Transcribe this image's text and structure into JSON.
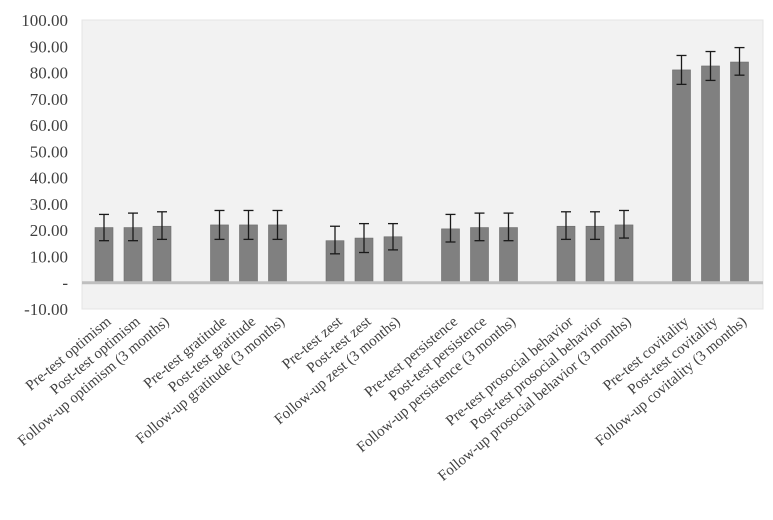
{
  "chart_data": {
    "type": "bar",
    "title": "",
    "xlabel": "",
    "ylabel": "",
    "ylim": [
      -10,
      100
    ],
    "yticks": [
      "-10.00",
      "-",
      "10.00",
      "20.00",
      "30.00",
      "40.00",
      "50.00",
      "60.00",
      "70.00",
      "80.00",
      "90.00",
      "100.00"
    ],
    "ytick_values": [
      -10,
      0,
      10,
      20,
      30,
      40,
      50,
      60,
      70,
      80,
      90,
      100
    ],
    "grid": false,
    "legend": "none",
    "groups": [
      [
        "Pre-test optimism",
        "Post-test optimism",
        "Follow-up optimism (3 months)"
      ],
      [
        "Pre-test gratitude",
        "Post-test gratitude",
        "Follow-up gratitude (3 months)"
      ],
      [
        "Pre-test zest",
        "Post-test zest",
        "Follow-up zest (3 months)"
      ],
      [
        "Pre-test persistence",
        "Post-test persistence",
        "Follow-up persistence (3 months)"
      ],
      [
        "Pre-test prosocial behavior",
        "Post-test prosocial behavior",
        "Follow-up prosocial behavior (3 months)"
      ],
      [
        "Pre-test covitality",
        "Post-test covitality",
        "Follow-up covitality (3 months)"
      ]
    ],
    "categories": [
      "Pre-test optimism",
      "Post-test optimism",
      "Follow-up optimism (3 months)",
      "Pre-test gratitude",
      "Post-test gratitude",
      "Follow-up gratitude (3 months)",
      "Pre-test zest",
      "Post-test zest",
      "Follow-up zest (3 months)",
      "Pre-test persistence",
      "Post-test persistence",
      "Follow-up persistence (3 months)",
      "Pre-test prosocial behavior",
      "Post-test prosocial behavior",
      "Follow-up prosocial behavior (3 months)",
      "Pre-test covitality",
      "Post-test covitality",
      "Follow-up covitality (3 months)"
    ],
    "values": [
      21.0,
      21.0,
      21.5,
      22.0,
      22.0,
      22.0,
      16.0,
      17.0,
      17.5,
      20.5,
      21.0,
      21.0,
      21.5,
      21.5,
      22.0,
      81.0,
      82.5,
      84.0
    ],
    "error_low": [
      16.0,
      16.0,
      16.5,
      16.5,
      16.5,
      16.5,
      11.0,
      11.5,
      12.5,
      15.5,
      16.0,
      16.0,
      16.5,
      16.5,
      17.0,
      75.5,
      77.0,
      79.0
    ],
    "error_high": [
      26.0,
      26.5,
      27.0,
      27.5,
      27.5,
      27.5,
      21.5,
      22.5,
      22.5,
      26.0,
      26.5,
      26.5,
      27.0,
      27.0,
      27.5,
      86.5,
      88.0,
      89.5
    ],
    "colors": {
      "bar": "#808080",
      "bar_stroke": "#6b6b6b",
      "plot_bg": "#f2f2f2",
      "axis": "#bfbfbf",
      "error": "#1a1a1a",
      "text": "#404040"
    }
  }
}
